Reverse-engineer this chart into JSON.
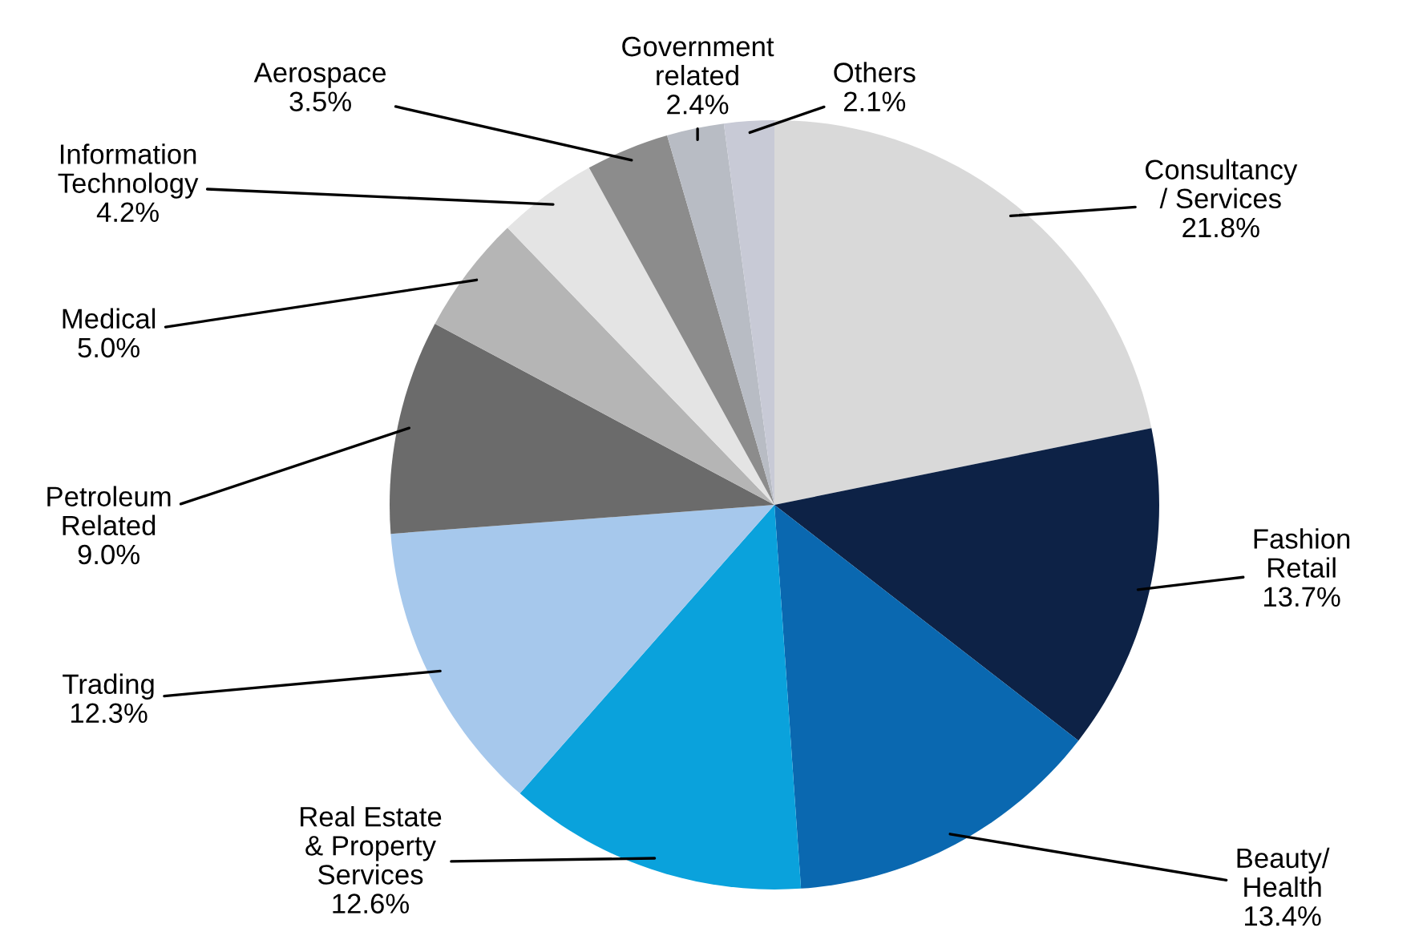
{
  "chart_data": {
    "type": "pie",
    "categories": [
      "Consultancy\n/ Services",
      "Fashion\nRetail",
      "Beauty/\nHealth",
      "Real Estate\n& Property\nServices",
      "Trading",
      "Petroleum\nRelated",
      "Medical",
      "Information\nTechnology",
      "Aerospace",
      "Government\nrelated",
      "Others"
    ],
    "values": [
      21.8,
      13.7,
      13.4,
      12.6,
      12.3,
      9.0,
      5.0,
      4.2,
      3.5,
      2.4,
      2.1
    ],
    "value_labels": [
      "21.8%",
      "13.7%",
      "13.4%",
      "12.6%",
      "12.3%",
      "9.0%",
      "5.0%",
      "4.2%",
      "3.5%",
      "2.4%",
      "2.1%"
    ],
    "colors": [
      "#d9d9d9",
      "#0d2246",
      "#0a68b0",
      "#0aa2dc",
      "#a6c8ec",
      "#6b6b6b",
      "#b5b5b5",
      "#e4e4e4",
      "#8c8c8c",
      "#b8bcc4",
      "#c8cad6"
    ]
  }
}
